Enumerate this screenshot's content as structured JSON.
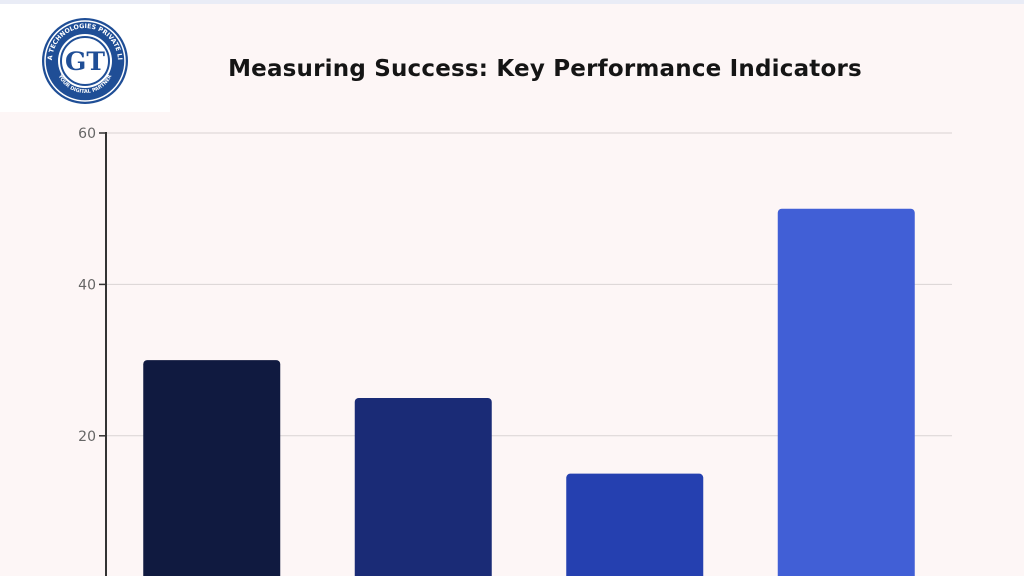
{
  "logo": {
    "ring_text": "GASHIA TECHNOLOGIES PRIVATE LIMITED",
    "tagline": "YOUR DIGITAL PARTNER",
    "monogram": "GT"
  },
  "colors": {
    "background": "#fdf6f6",
    "gridline": "#d9d3d3",
    "axis": "#333333",
    "logo_blue": "#1f4e96"
  },
  "chart_data": {
    "type": "bar",
    "title": "Measuring Success: Key Performance Indicators",
    "xlabel": "",
    "ylabel": "",
    "categories": [
      "",
      "",
      "",
      ""
    ],
    "values": [
      30,
      25,
      15,
      50
    ],
    "bar_colors": [
      "#101a40",
      "#1a2b76",
      "#2540b0",
      "#415fd6"
    ],
    "ylim": [
      0,
      60
    ],
    "yticks": [
      20,
      40,
      60
    ],
    "grid": true
  }
}
